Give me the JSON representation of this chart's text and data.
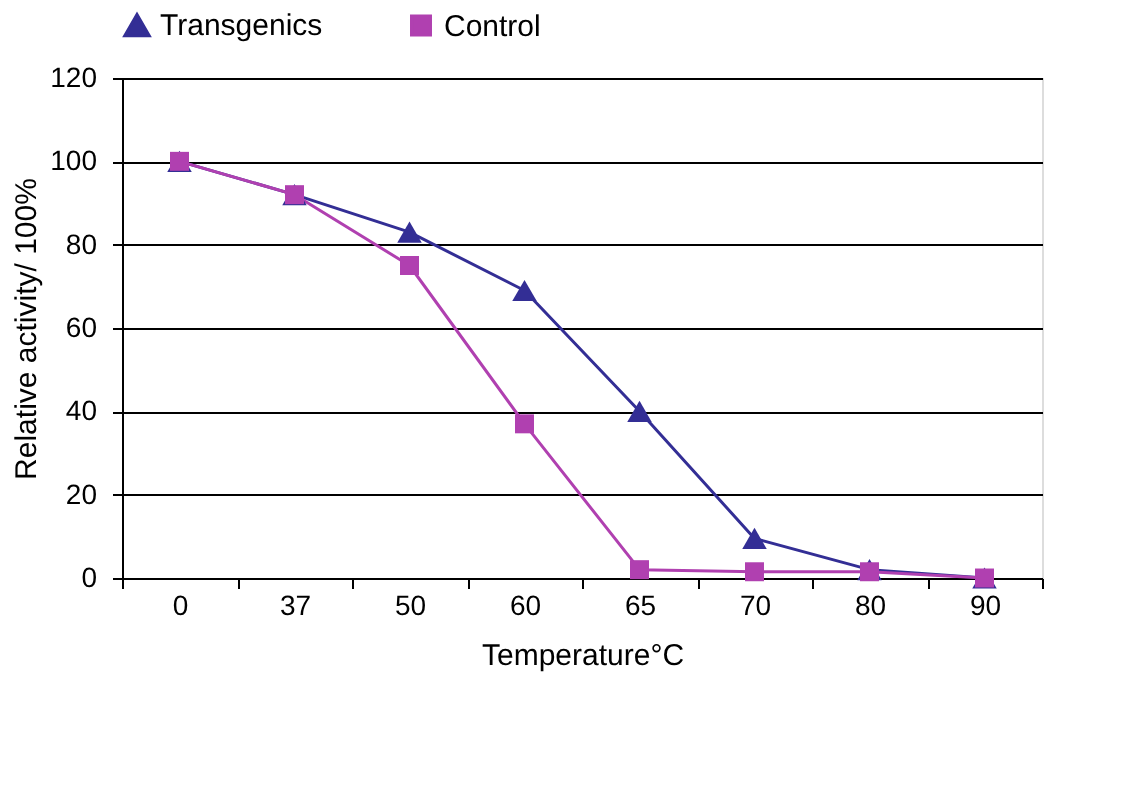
{
  "chart_data": {
    "type": "line",
    "xlabel": "Temperature°C",
    "ylabel": "Relative activity/ 100%",
    "categories": [
      "0",
      "37",
      "50",
      "60",
      "65",
      "70",
      "80",
      "90"
    ],
    "series": [
      {
        "name": "Transgenics",
        "color": "#332e95",
        "marker": "triangle",
        "values": [
          100,
          92,
          83,
          69,
          40,
          9.5,
          2,
          0
        ]
      },
      {
        "name": "Control",
        "color": "#b040b0",
        "marker": "square",
        "values": [
          100,
          92,
          75,
          37,
          2,
          1.5,
          1.5,
          0
        ]
      }
    ],
    "ylim": [
      0,
      120
    ],
    "yticks": [
      0,
      20,
      40,
      60,
      80,
      100,
      120
    ],
    "grid": "y",
    "legend": "top"
  }
}
